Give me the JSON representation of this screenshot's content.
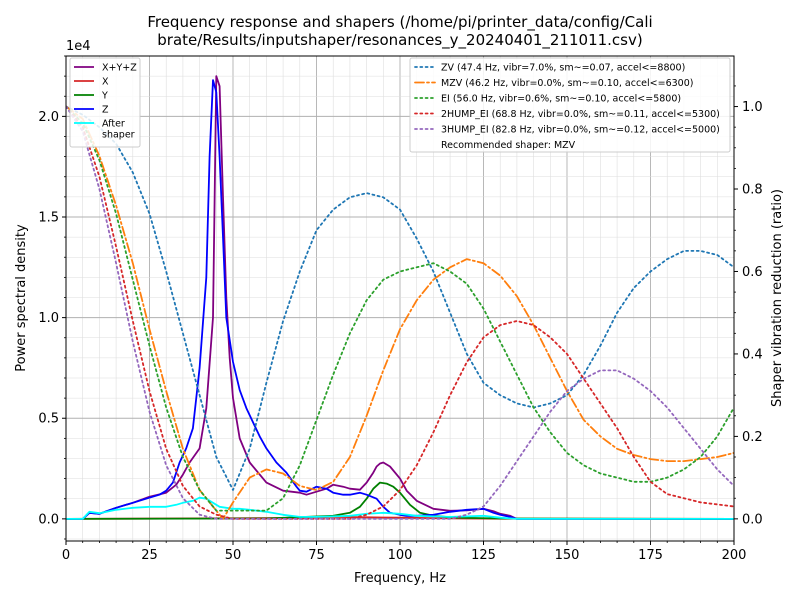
{
  "chart_data": {
    "type": "line",
    "title_lines": [
      "Frequency response and shapers (/home/pi/printer_data/config/Cali",
      "brate/Results/inputshaper/resonances_y_20240401_211011.csv)"
    ],
    "xlabel": "Frequency, Hz",
    "ylabel": "Power spectral density",
    "ylabel_right": "Shaper vibration reduction (ratio)",
    "y_offset_text": "1e4",
    "xlim": [
      0,
      200
    ],
    "ylim": [
      -1100,
      23000
    ],
    "ylim_right": [
      -0.0537,
      1.1226
    ],
    "x_ticks": [
      0,
      25,
      50,
      75,
      100,
      125,
      150,
      175,
      200
    ],
    "x_tick_labels": [
      "0",
      "25",
      "50",
      "75",
      "100",
      "125",
      "150",
      "175",
      "200"
    ],
    "y_ticks": [
      0,
      5000,
      10000,
      15000,
      20000
    ],
    "y_tick_labels": [
      "0.0",
      "0.5",
      "1.0",
      "1.5",
      "2.0"
    ],
    "y_right_ticks": [
      0.0,
      0.2,
      0.4,
      0.6,
      0.8,
      1.0
    ],
    "y_right_tick_labels": [
      "0.0",
      "0.2",
      "0.4",
      "0.6",
      "0.8",
      "1.0"
    ],
    "grid": true,
    "legend_left_placement": "top-left",
    "legend_right_placement": "top-right",
    "psd_series": [
      {
        "name": "X+Y+Z",
        "color": "#800080",
        "dash": "solid",
        "x": [
          0,
          5,
          7,
          10,
          15,
          20,
          25,
          30,
          33,
          35,
          37,
          40,
          42,
          44,
          45,
          46,
          47,
          48,
          49,
          50,
          52,
          55,
          60,
          65,
          70,
          72,
          75,
          78,
          80,
          83,
          85,
          88,
          90,
          92,
          93,
          94,
          95,
          97,
          100,
          102,
          105,
          110,
          115,
          120,
          125,
          128,
          130,
          133,
          135,
          140,
          150,
          160,
          175,
          190,
          200
        ],
        "y": [
          0,
          0,
          300,
          250,
          550,
          800,
          1100,
          1300,
          1700,
          2200,
          2800,
          3500,
          5500,
          10000,
          22000,
          21500,
          16000,
          11000,
          8000,
          6000,
          4000,
          2800,
          1800,
          1400,
          1300,
          1200,
          1350,
          1500,
          1700,
          1600,
          1500,
          1450,
          1800,
          2300,
          2600,
          2750,
          2800,
          2600,
          2000,
          1400,
          900,
          500,
          400,
          420,
          500,
          380,
          250,
          150,
          0,
          0,
          0,
          0,
          0,
          0,
          0
        ]
      },
      {
        "name": "X",
        "color": "#d62728",
        "dash": "solid",
        "x": [
          0,
          50,
          70,
          80,
          90,
          100,
          110,
          120,
          130,
          200
        ],
        "y": [
          0,
          30,
          50,
          100,
          80,
          60,
          40,
          20,
          10,
          0
        ]
      },
      {
        "name": "Y",
        "color": "#008000",
        "dash": "solid",
        "x": [
          0,
          60,
          80,
          85,
          88,
          90,
          92,
          94,
          96,
          98,
          100,
          103,
          106,
          110,
          115,
          120,
          130,
          200
        ],
        "y": [
          0,
          20,
          150,
          300,
          600,
          1000,
          1500,
          1800,
          1750,
          1600,
          1300,
          700,
          300,
          150,
          80,
          50,
          20,
          0
        ]
      },
      {
        "name": "Z",
        "color": "#0000ff",
        "dash": "solid",
        "x": [
          0,
          5,
          7,
          10,
          15,
          20,
          25,
          28,
          30,
          32,
          34,
          36,
          38,
          40,
          42,
          43,
          44,
          45,
          46,
          47,
          48,
          50,
          52,
          54,
          56,
          58,
          60,
          63,
          66,
          69,
          70,
          72,
          75,
          78,
          80,
          83,
          85,
          88,
          90,
          93,
          95,
          97,
          100,
          102,
          105,
          110,
          115,
          120,
          125,
          128,
          130,
          133,
          135,
          140,
          150,
          160,
          175,
          190,
          200
        ],
        "y": [
          0,
          0,
          300,
          250,
          550,
          800,
          1050,
          1200,
          1400,
          1800,
          2800,
          3500,
          4500,
          7500,
          12000,
          18000,
          21800,
          21200,
          18000,
          14000,
          10000,
          7800,
          6400,
          5500,
          4800,
          4100,
          3500,
          2800,
          2300,
          1600,
          1400,
          1350,
          1600,
          1500,
          1300,
          1200,
          1200,
          1300,
          1200,
          1000,
          600,
          300,
          200,
          150,
          150,
          200,
          350,
          450,
          500,
          300,
          200,
          100,
          0,
          0,
          0,
          0,
          0,
          0,
          0
        ]
      },
      {
        "name": "After\nshaper",
        "color": "#00ffff",
        "dash": "solid",
        "x": [
          0,
          5,
          7,
          10,
          15,
          20,
          25,
          30,
          33,
          35,
          38,
          40,
          42,
          44,
          46,
          48,
          50,
          52,
          55,
          60,
          65,
          70,
          75,
          80,
          85,
          90,
          95,
          100,
          105,
          110,
          115,
          120,
          125,
          130,
          135,
          140,
          160,
          180,
          200
        ],
        "y": [
          0,
          0,
          350,
          280,
          450,
          550,
          600,
          600,
          700,
          800,
          900,
          1050,
          1000,
          800,
          600,
          550,
          500,
          500,
          450,
          350,
          200,
          100,
          100,
          120,
          150,
          250,
          300,
          250,
          150,
          120,
          100,
          120,
          150,
          60,
          0,
          0,
          0,
          0,
          0
        ]
      }
    ],
    "shaper_series": [
      {
        "name": "ZV (47.4 Hz, vibr=7.0%, sm~=0.07, accel<=8800)",
        "color": "#1f77b4",
        "dash": "dotted",
        "x": [
          0,
          5,
          10,
          15,
          20,
          25,
          30,
          35,
          40,
          45,
          50,
          55,
          60,
          65,
          70,
          75,
          80,
          85,
          90,
          95,
          100,
          105,
          110,
          115,
          120,
          125,
          130,
          135,
          140,
          145,
          150,
          155,
          160,
          165,
          170,
          175,
          180,
          185,
          190,
          195,
          200
        ],
        "y": [
          1.0,
          0.98,
          0.95,
          0.91,
          0.84,
          0.74,
          0.6,
          0.45,
          0.3,
          0.15,
          0.07,
          0.17,
          0.33,
          0.48,
          0.6,
          0.7,
          0.75,
          0.78,
          0.79,
          0.78,
          0.75,
          0.68,
          0.6,
          0.5,
          0.4,
          0.33,
          0.3,
          0.28,
          0.27,
          0.28,
          0.3,
          0.35,
          0.42,
          0.5,
          0.56,
          0.6,
          0.63,
          0.65,
          0.65,
          0.64,
          0.61
        ]
      },
      {
        "name": "MZV (46.2 Hz, vibr=0.0%, sm~=0.10, accel<=6300)",
        "color": "#ff7f0e",
        "dash": "dashdot",
        "x": [
          0,
          5,
          10,
          15,
          20,
          25,
          30,
          35,
          40,
          45,
          47,
          50,
          55,
          60,
          65,
          70,
          75,
          80,
          85,
          90,
          95,
          100,
          105,
          110,
          115,
          120,
          125,
          130,
          135,
          140,
          145,
          150,
          155,
          160,
          165,
          170,
          175,
          180,
          185,
          190,
          195,
          200
        ],
        "y": [
          1.0,
          0.97,
          0.88,
          0.76,
          0.62,
          0.46,
          0.31,
          0.17,
          0.07,
          0.02,
          0.0,
          0.04,
          0.1,
          0.12,
          0.11,
          0.08,
          0.07,
          0.09,
          0.15,
          0.25,
          0.36,
          0.46,
          0.53,
          0.58,
          0.61,
          0.63,
          0.62,
          0.59,
          0.54,
          0.47,
          0.39,
          0.31,
          0.24,
          0.2,
          0.17,
          0.155,
          0.145,
          0.14,
          0.14,
          0.145,
          0.15,
          0.16
        ]
      },
      {
        "name": "EI (56.0 Hz, vibr=0.6%, sm~=0.10, accel<=5800)",
        "color": "#2ca02c",
        "dash": "dotted",
        "x": [
          0,
          5,
          10,
          15,
          20,
          25,
          30,
          35,
          40,
          45,
          50,
          55,
          60,
          65,
          70,
          75,
          80,
          85,
          90,
          95,
          100,
          105,
          110,
          115,
          120,
          125,
          130,
          135,
          140,
          145,
          150,
          155,
          160,
          165,
          170,
          175,
          180,
          185,
          190,
          195,
          200
        ],
        "y": [
          1.0,
          0.96,
          0.87,
          0.74,
          0.58,
          0.42,
          0.27,
          0.15,
          0.07,
          0.02,
          0.02,
          0.02,
          0.02,
          0.05,
          0.13,
          0.24,
          0.35,
          0.45,
          0.53,
          0.58,
          0.6,
          0.61,
          0.62,
          0.6,
          0.57,
          0.51,
          0.43,
          0.35,
          0.27,
          0.21,
          0.16,
          0.13,
          0.11,
          0.1,
          0.09,
          0.09,
          0.1,
          0.12,
          0.15,
          0.2,
          0.27
        ]
      },
      {
        "name": "2HUMP_EI (68.8 Hz, vibr=0.0%, sm~=0.11, accel<=5300)",
        "color": "#d62728",
        "dash": "dotted",
        "x": [
          0,
          5,
          10,
          15,
          20,
          25,
          30,
          35,
          40,
          45,
          50,
          55,
          60,
          65,
          70,
          75,
          80,
          85,
          90,
          95,
          100,
          105,
          110,
          115,
          120,
          125,
          130,
          135,
          140,
          145,
          150,
          155,
          160,
          165,
          170,
          175,
          180,
          185,
          190,
          195,
          200
        ],
        "y": [
          1.0,
          0.95,
          0.83,
          0.66,
          0.48,
          0.31,
          0.17,
          0.08,
          0.03,
          0.01,
          0.0,
          0.0,
          0.0,
          0.0,
          0.0,
          0.0,
          0.0,
          0.0,
          0.01,
          0.03,
          0.07,
          0.13,
          0.21,
          0.3,
          0.38,
          0.44,
          0.47,
          0.48,
          0.47,
          0.44,
          0.4,
          0.34,
          0.28,
          0.22,
          0.15,
          0.09,
          0.06,
          0.05,
          0.04,
          0.035,
          0.03
        ]
      },
      {
        "name": "3HUMP_EI (82.8 Hz, vibr=0.0%, sm~=0.12, accel<=5000)",
        "color": "#9467bd",
        "dash": "dotted",
        "x": [
          0,
          5,
          10,
          15,
          20,
          25,
          30,
          35,
          40,
          45,
          50,
          55,
          60,
          65,
          70,
          75,
          80,
          85,
          90,
          95,
          100,
          105,
          110,
          115,
          120,
          125,
          130,
          135,
          140,
          145,
          150,
          155,
          160,
          165,
          170,
          175,
          180,
          185,
          190,
          195,
          200
        ],
        "y": [
          1.0,
          0.94,
          0.8,
          0.62,
          0.43,
          0.26,
          0.13,
          0.05,
          0.01,
          0.0,
          0.0,
          0.0,
          0.0,
          0.0,
          0.0,
          0.0,
          0.0,
          0.0,
          0.0,
          0.0,
          0.0,
          0.0,
          0.0,
          0.0,
          0.01,
          0.03,
          0.08,
          0.14,
          0.2,
          0.26,
          0.31,
          0.34,
          0.36,
          0.36,
          0.34,
          0.31,
          0.27,
          0.22,
          0.17,
          0.12,
          0.08
        ]
      }
    ],
    "recommended_text": "Recommended shaper: MZV"
  }
}
